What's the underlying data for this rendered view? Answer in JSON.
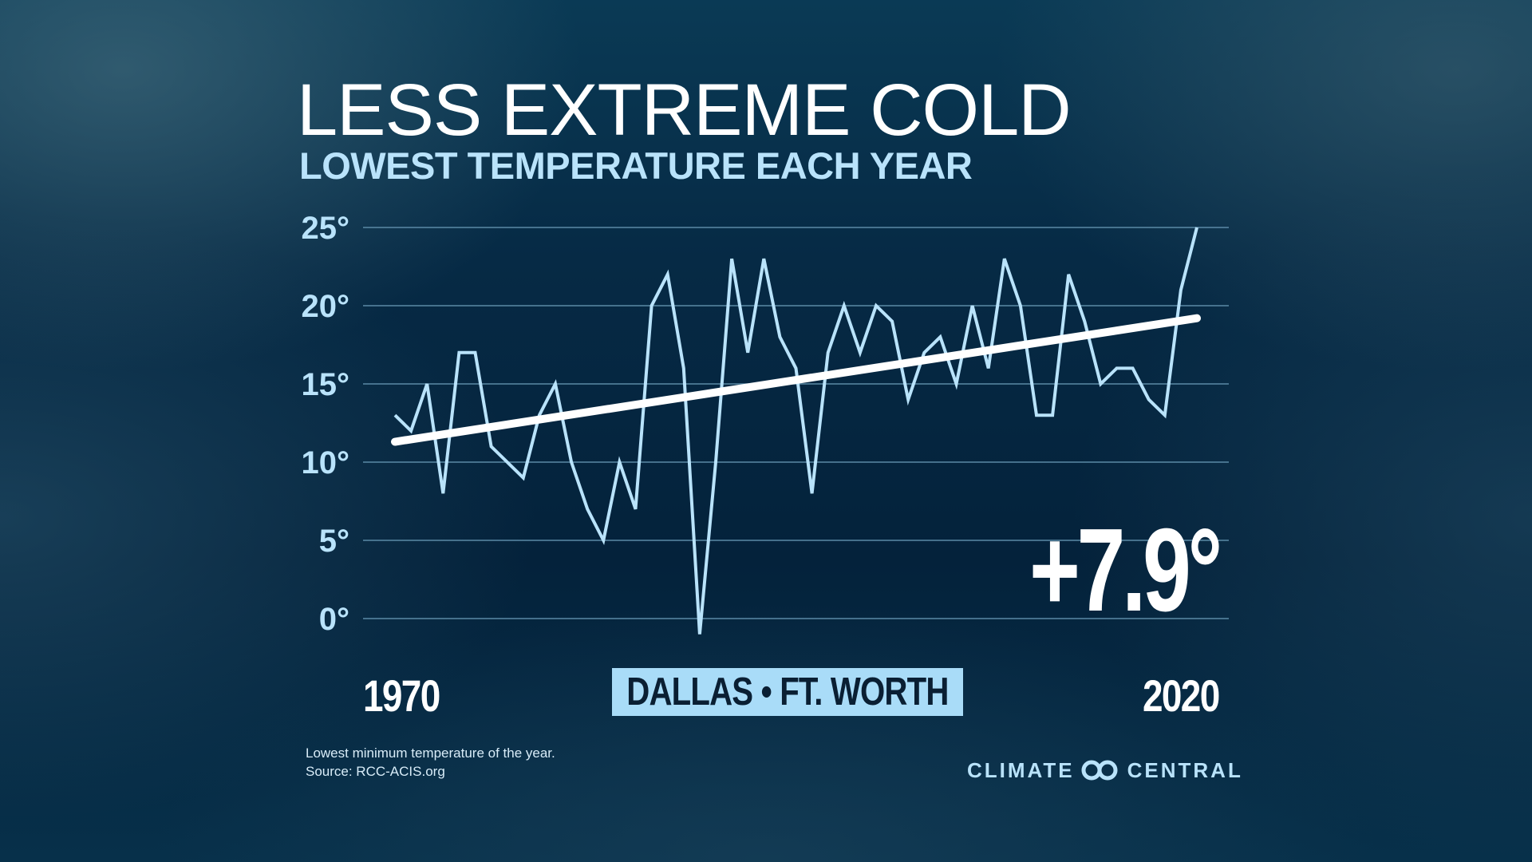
{
  "title": "LESS EXTREME COLD",
  "subtitle": "LOWEST TEMPERATURE EACH YEAR",
  "location": "DALLAS • FT. WORTH",
  "change_label": "+7.9°",
  "x_start_label": "1970",
  "x_end_label": "2020",
  "footnote": {
    "line1": "Lowest minimum temperature of the year.",
    "line2": "Source: RCC-ACIS.org"
  },
  "brand": {
    "left": "CLIMATE",
    "right": "CENTRAL",
    "icon": "climate-central-logo-icon"
  },
  "colors": {
    "background": "#05233a",
    "series_line": "#b9e3fb",
    "trend_line": "#ffffff",
    "gridline": "#5b8aa6",
    "location_box": "#a9dcf8"
  },
  "chart_data": {
    "type": "line",
    "title": "LESS EXTREME COLD",
    "subtitle": "LOWEST TEMPERATURE EACH YEAR",
    "xlabel": "",
    "ylabel": "",
    "x": [
      1970,
      1971,
      1972,
      1973,
      1974,
      1975,
      1976,
      1977,
      1978,
      1979,
      1980,
      1981,
      1982,
      1983,
      1984,
      1985,
      1986,
      1987,
      1988,
      1989,
      1990,
      1991,
      1992,
      1993,
      1994,
      1995,
      1996,
      1997,
      1998,
      1999,
      2000,
      2001,
      2002,
      2003,
      2004,
      2005,
      2006,
      2007,
      2008,
      2009,
      2010,
      2011,
      2012,
      2013,
      2014,
      2015,
      2016,
      2017,
      2018,
      2019,
      2020
    ],
    "series": [
      {
        "values": [
          13,
          12,
          15,
          8,
          17,
          17,
          11,
          10,
          9,
          13,
          15,
          10,
          7,
          5,
          10,
          7,
          20,
          22,
          16,
          -1,
          10,
          23,
          17,
          23,
          18,
          16,
          8,
          17,
          20,
          17,
          20,
          19,
          14,
          17,
          18,
          15,
          20,
          16,
          23,
          20,
          13,
          13,
          22,
          19,
          15,
          16,
          16,
          14,
          13,
          21,
          25
        ]
      },
      {
        "name": "trend",
        "values_at_ends": [
          11.3,
          19.2
        ]
      }
    ],
    "xlim": [
      1970,
      2020
    ],
    "ylim": [
      0,
      25
    ],
    "yticks": [
      "25°",
      "20°",
      "15°",
      "10°",
      "5°",
      "0°"
    ],
    "ytick_values": [
      25,
      20,
      15,
      10,
      5,
      0
    ],
    "annotation": "+7.9°",
    "grid": true,
    "legend": "none"
  }
}
